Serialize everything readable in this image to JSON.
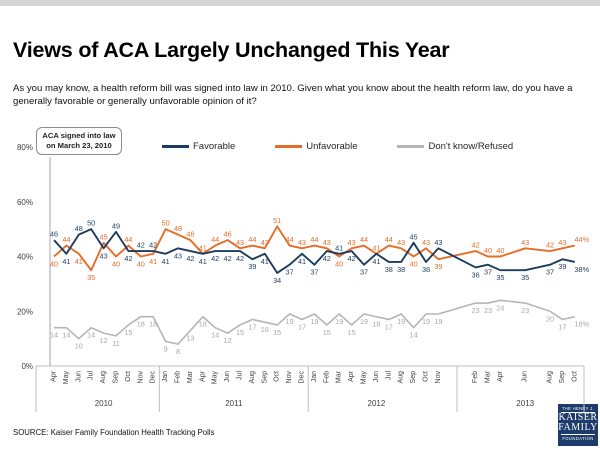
{
  "header": {
    "title": "Views of ACA Largely Unchanged This Year",
    "subtitle": "As you may know, a health reform bill was signed into law in 2010. Given what you know about the health reform law, do you have a generally favorable or generally unfavorable opinion of it?"
  },
  "annotation": {
    "line1": "ACA signed into law",
    "line2": "on March 23, 2010"
  },
  "source": "SOURCE: Kaiser Family Foundation Health Tracking Polls",
  "logo": {
    "line1": "THE HENRY J.",
    "line2": "KAISER",
    "line3": "FAMILY",
    "line4": "FOUNDATION"
  },
  "chart_data": {
    "type": "line",
    "title": "Views of ACA Largely Unchanged This Year",
    "ylim": [
      0,
      80
    ],
    "grid": false,
    "legend_position": "top",
    "yticks": [
      {
        "value": 0,
        "label": "0%"
      },
      {
        "value": 20,
        "label": "20%"
      },
      {
        "value": 40,
        "label": "40%"
      },
      {
        "value": 60,
        "label": "60%"
      },
      {
        "value": 80,
        "label": "80%"
      }
    ],
    "x_axis": {
      "unit": "months since Apr 2010 (missing slots = no poll)",
      "year_groups": [
        {
          "label": "2010",
          "months": [
            "Apr",
            "May",
            "Jun",
            "Jul",
            "Aug",
            "Sep",
            "Oct",
            "Nov",
            "Dec"
          ],
          "slots": [
            0,
            1,
            2,
            3,
            4,
            5,
            6,
            7,
            8
          ]
        },
        {
          "label": "2011",
          "months": [
            "Jan",
            "Feb",
            "Mar",
            "Apr",
            "May",
            "Jun",
            "Jul",
            "Aug",
            "Sep",
            "Oct",
            "Nov",
            "Dec"
          ],
          "slots": [
            9,
            10,
            11,
            12,
            13,
            14,
            15,
            16,
            17,
            18,
            19,
            20
          ]
        },
        {
          "label": "2012",
          "months": [
            "Jan",
            "Feb",
            "Mar",
            "Apr",
            "May",
            "Jun",
            "Jul",
            "Aug",
            "Sep",
            "Oct",
            "Nov"
          ],
          "slots": [
            21,
            22,
            23,
            24,
            25,
            26,
            27,
            28,
            29,
            30,
            31
          ]
        },
        {
          "label": "2013",
          "months": [
            "Feb",
            "Mar",
            "Apr",
            "Jun",
            "Aug",
            "Sep",
            "Oct"
          ],
          "slots": [
            34,
            35,
            36,
            38,
            40,
            41,
            42
          ]
        }
      ]
    },
    "slots": [
      0,
      1,
      2,
      3,
      4,
      5,
      6,
      7,
      8,
      9,
      10,
      11,
      12,
      13,
      14,
      15,
      16,
      17,
      18,
      19,
      20,
      21,
      22,
      23,
      24,
      25,
      26,
      27,
      28,
      29,
      30,
      31,
      34,
      35,
      36,
      38,
      40,
      41,
      42
    ],
    "series": [
      {
        "name": "Favorable",
        "color": "#1d3c5e",
        "values": [
          46,
          41,
          48,
          50,
          43,
          49,
          42,
          42,
          42,
          41,
          43,
          42,
          41,
          42,
          42,
          42,
          39,
          41,
          34,
          37,
          41,
          37,
          42,
          41,
          42,
          37,
          41,
          38,
          38,
          45,
          38,
          43,
          36,
          37,
          35,
          35,
          37,
          39,
          38
        ]
      },
      {
        "name": "Unfavorable",
        "color": "#e56d27",
        "values": [
          40,
          44,
          41,
          35,
          45,
          40,
          44,
          40,
          41,
          50,
          48,
          46,
          41,
          44,
          46,
          43,
          44,
          43,
          51,
          44,
          43,
          44,
          43,
          40,
          43,
          44,
          41,
          44,
          43,
          40,
          43,
          39,
          42,
          40,
          40,
          43,
          42,
          43,
          44
        ]
      },
      {
        "name": "Don't know/Refused",
        "color": "#b5b5b5",
        "label_color": "#a8a8a8",
        "values": [
          14,
          14,
          10,
          14,
          12,
          11,
          15,
          18,
          18,
          9,
          8,
          13,
          18,
          14,
          12,
          15,
          17,
          16,
          15,
          19,
          17,
          19,
          15,
          19,
          15,
          19,
          18,
          17,
          19,
          14,
          19,
          19,
          23,
          23,
          24,
          23,
          20,
          17,
          18
        ]
      }
    ],
    "last_point_suffix": "%"
  }
}
